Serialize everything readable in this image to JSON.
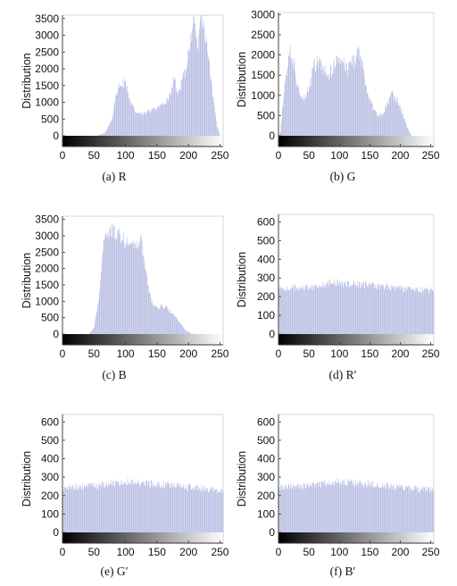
{
  "colors": {
    "bars": "#9ea6d8",
    "frame": "#333333"
  },
  "chart_data": [
    {
      "type": "bar",
      "caption": "(a) R",
      "ylabel": "Distribution",
      "xlim": [
        0,
        255
      ],
      "ylim": [
        0,
        3600
      ],
      "xticks": [
        "0",
        "50",
        "100",
        "150",
        "200",
        "250"
      ],
      "yticks": [
        "0",
        "500",
        "1000",
        "1500",
        "2000",
        "2500",
        "3000",
        "3500"
      ],
      "ytick_values": [
        0,
        500,
        1000,
        1500,
        2000,
        2500,
        3000,
        3500
      ],
      "profile": [
        [
          0,
          0
        ],
        [
          55,
          0
        ],
        [
          68,
          100
        ],
        [
          78,
          500
        ],
        [
          85,
          1200
        ],
        [
          92,
          1550
        ],
        [
          96,
          1600
        ],
        [
          102,
          1400
        ],
        [
          108,
          1000
        ],
        [
          115,
          750
        ],
        [
          125,
          650
        ],
        [
          140,
          750
        ],
        [
          160,
          900
        ],
        [
          170,
          1200
        ],
        [
          178,
          1750
        ],
        [
          183,
          1250
        ],
        [
          190,
          1600
        ],
        [
          198,
          2200
        ],
        [
          205,
          3200
        ],
        [
          210,
          3400
        ],
        [
          214,
          2500
        ],
        [
          218,
          3500
        ],
        [
          221,
          3550
        ],
        [
          226,
          2900
        ],
        [
          232,
          2200
        ],
        [
          238,
          1200
        ],
        [
          245,
          300
        ],
        [
          250,
          0
        ],
        [
          255,
          0
        ]
      ],
      "noise": 0.1
    },
    {
      "type": "bar",
      "caption": "(b) G",
      "ylabel": "Distribution",
      "xlim": [
        0,
        255
      ],
      "ylim": [
        0,
        3050
      ],
      "xticks": [
        "0",
        "50",
        "100",
        "150",
        "200",
        "250"
      ],
      "yticks": [
        "0",
        "500",
        "1000",
        "1500",
        "2000",
        "2500",
        "3000"
      ],
      "ytick_values": [
        0,
        500,
        1000,
        1500,
        2000,
        2500,
        3000
      ],
      "profile": [
        [
          0,
          0
        ],
        [
          3,
          100
        ],
        [
          8,
          1000
        ],
        [
          15,
          1800
        ],
        [
          20,
          2050
        ],
        [
          26,
          1700
        ],
        [
          33,
          1100
        ],
        [
          42,
          950
        ],
        [
          50,
          1200
        ],
        [
          58,
          1700
        ],
        [
          64,
          1850
        ],
        [
          72,
          1650
        ],
        [
          80,
          1500
        ],
        [
          88,
          1600
        ],
        [
          94,
          1900
        ],
        [
          98,
          2050
        ],
        [
          105,
          1800
        ],
        [
          112,
          1650
        ],
        [
          118,
          1800
        ],
        [
          125,
          1900
        ],
        [
          132,
          2050
        ],
        [
          138,
          1700
        ],
        [
          145,
          1100
        ],
        [
          152,
          800
        ],
        [
          160,
          550
        ],
        [
          168,
          500
        ],
        [
          176,
          700
        ],
        [
          185,
          1000
        ],
        [
          192,
          950
        ],
        [
          200,
          700
        ],
        [
          210,
          250
        ],
        [
          218,
          0
        ],
        [
          255,
          0
        ]
      ],
      "noise": 0.12
    },
    {
      "type": "bar",
      "caption": "(c) B",
      "ylabel": "Distribution",
      "xlim": [
        0,
        255
      ],
      "ylim": [
        0,
        3600
      ],
      "xticks": [
        "0",
        "50",
        "100",
        "150",
        "200",
        "250"
      ],
      "yticks": [
        "0",
        "500",
        "1000",
        "1500",
        "2000",
        "2500",
        "3000",
        "3500"
      ],
      "ytick_values": [
        0,
        500,
        1000,
        1500,
        2000,
        2500,
        3000,
        3500
      ],
      "profile": [
        [
          0,
          0
        ],
        [
          42,
          0
        ],
        [
          50,
          200
        ],
        [
          58,
          1200
        ],
        [
          65,
          2700
        ],
        [
          72,
          3100
        ],
        [
          80,
          3150
        ],
        [
          88,
          3050
        ],
        [
          96,
          2900
        ],
        [
          104,
          2800
        ],
        [
          112,
          2650
        ],
        [
          118,
          2700
        ],
        [
          124,
          2950
        ],
        [
          130,
          2200
        ],
        [
          136,
          1400
        ],
        [
          143,
          900
        ],
        [
          150,
          800
        ],
        [
          158,
          850
        ],
        [
          165,
          800
        ],
        [
          172,
          650
        ],
        [
          180,
          500
        ],
        [
          188,
          300
        ],
        [
          196,
          100
        ],
        [
          205,
          0
        ],
        [
          255,
          0
        ]
      ],
      "noise": 0.08
    },
    {
      "type": "bar",
      "caption": "(d) R′",
      "ylabel": "Distribution",
      "xlim": [
        0,
        255
      ],
      "ylim": [
        0,
        640
      ],
      "xticks": [
        "0",
        "50",
        "100",
        "150",
        "200",
        "250"
      ],
      "yticks": [
        "0",
        "100",
        "200",
        "300",
        "400",
        "500",
        "600"
      ],
      "ytick_values": [
        0,
        100,
        200,
        300,
        400,
        500,
        600
      ],
      "profile": [
        [
          0,
          240
        ],
        [
          30,
          250
        ],
        [
          60,
          255
        ],
        [
          90,
          275
        ],
        [
          110,
          270
        ],
        [
          140,
          265
        ],
        [
          170,
          255
        ],
        [
          200,
          245
        ],
        [
          230,
          235
        ],
        [
          255,
          230
        ]
      ],
      "noise": 0.08
    },
    {
      "type": "bar",
      "caption": "(e) G′",
      "ylabel": "Distribution",
      "xlim": [
        0,
        255
      ],
      "ylim": [
        0,
        640
      ],
      "xticks": [
        "0",
        "50",
        "100",
        "150",
        "200",
        "250"
      ],
      "yticks": [
        "0",
        "100",
        "200",
        "300",
        "400",
        "500",
        "600"
      ],
      "ytick_values": [
        0,
        100,
        200,
        300,
        400,
        500,
        600
      ],
      "profile": [
        [
          0,
          240
        ],
        [
          30,
          250
        ],
        [
          60,
          255
        ],
        [
          90,
          275
        ],
        [
          110,
          270
        ],
        [
          140,
          265
        ],
        [
          170,
          255
        ],
        [
          200,
          245
        ],
        [
          230,
          235
        ],
        [
          255,
          230
        ]
      ],
      "noise": 0.08
    },
    {
      "type": "bar",
      "caption": "(f) B′",
      "ylabel": "Distribution",
      "xlim": [
        0,
        255
      ],
      "ylim": [
        0,
        640
      ],
      "xticks": [
        "0",
        "50",
        "100",
        "150",
        "200",
        "250"
      ],
      "yticks": [
        "0",
        "100",
        "200",
        "300",
        "400",
        "500",
        "600"
      ],
      "ytick_values": [
        0,
        100,
        200,
        300,
        400,
        500,
        600
      ],
      "profile": [
        [
          0,
          240
        ],
        [
          30,
          250
        ],
        [
          60,
          255
        ],
        [
          90,
          275
        ],
        [
          110,
          270
        ],
        [
          140,
          265
        ],
        [
          170,
          255
        ],
        [
          200,
          245
        ],
        [
          230,
          235
        ],
        [
          255,
          230
        ]
      ],
      "noise": 0.08
    }
  ]
}
